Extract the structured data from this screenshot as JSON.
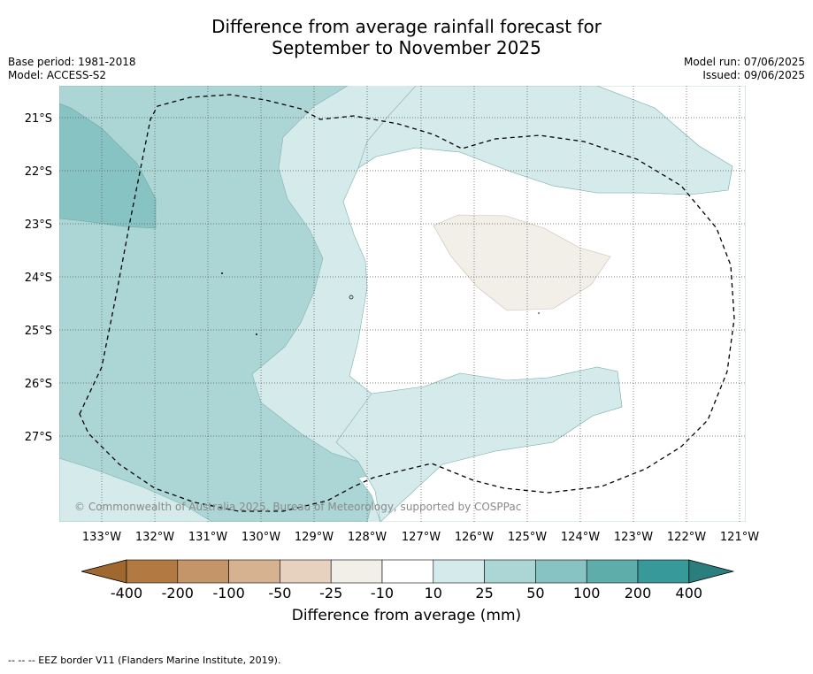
{
  "title_line1": "Difference from average rainfall forecast for",
  "title_line2": "September to November 2025",
  "meta": {
    "base_period": "Base period: 1981-2018",
    "model": "Model: ACCESS-S2",
    "model_run": "Model run: 07/06/2025",
    "issued": "Issued: 09/06/2025"
  },
  "map": {
    "lat_labels": [
      "21°S",
      "22°S",
      "23°S",
      "24°S",
      "25°S",
      "26°S",
      "27°S"
    ],
    "lon_labels": [
      "133°W",
      "132°W",
      "131°W",
      "130°W",
      "129°W",
      "128°W",
      "127°W",
      "126°W",
      "125°W",
      "124°W",
      "123°W",
      "122°W",
      "121°W"
    ],
    "copyright": "© Commonwealth of Australia 2025, Bureau of Meteorology, supported by COSPPac"
  },
  "colorbar": {
    "labels": [
      "-400",
      "-200",
      "-100",
      "-50",
      "-25",
      "-10",
      "10",
      "25",
      "50",
      "100",
      "200",
      "400"
    ],
    "colors": [
      "#a0682e",
      "#b27a42",
      "#c49568",
      "#d6b290",
      "#e6d2bf",
      "#f2eee8",
      "#ffffff",
      "#d5eaea",
      "#acd6d5",
      "#86c3c2",
      "#5eadab",
      "#37999a",
      "#2a7f7e"
    ],
    "title": "Difference from average (mm)"
  },
  "footer": "--  --  -- EEZ border V11 (Flanders Marine Institute, 2019)."
}
